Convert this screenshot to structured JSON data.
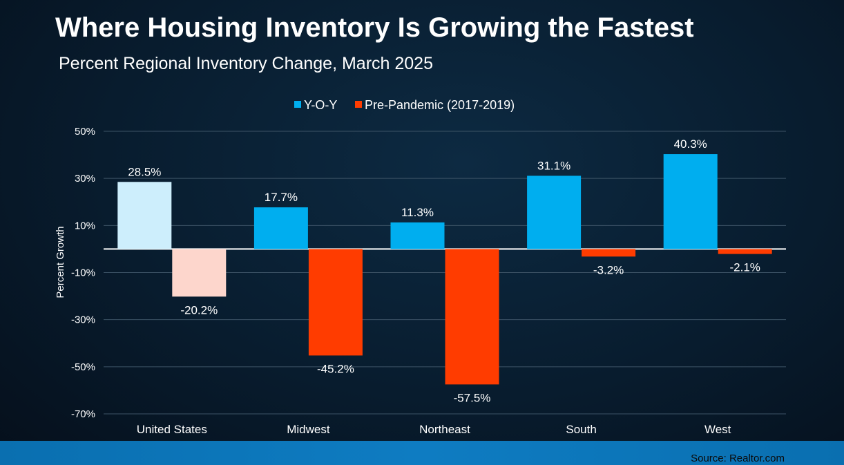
{
  "header": {
    "title": "Where Housing Inventory Is Growing the Fastest",
    "subtitle": "Percent Regional Inventory Change, March 2025"
  },
  "footer": {
    "source": "Source: Realtor.com"
  },
  "chart_data": {
    "type": "bar",
    "ylabel": "Percent Growth",
    "ylim": [
      -70,
      50
    ],
    "yticks": [
      50,
      30,
      10,
      -10,
      -30,
      -50,
      -70
    ],
    "ytick_labels": [
      "50%",
      "30%",
      "10%",
      "-10%",
      "-30%",
      "-50%",
      "-70%"
    ],
    "grid": true,
    "legend_position": "top-center",
    "categories": [
      "United States",
      "Midwest",
      "Northeast",
      "South",
      "West"
    ],
    "series": [
      {
        "name": "Y-O-Y",
        "color": "#00aeef",
        "values": [
          28.5,
          17.7,
          11.3,
          31.1,
          40.3
        ],
        "labels": [
          "28.5%",
          "17.7%",
          "11.3%",
          "31.1%",
          "40.3%"
        ]
      },
      {
        "name": "Pre-Pandemic (2017-2019)",
        "color": "#ff3c00",
        "values": [
          -20.2,
          -45.2,
          -57.5,
          -3.2,
          -2.1
        ],
        "labels": [
          "-20.2%",
          "-45.2%",
          "-57.5%",
          "-3.2%",
          "-2.1%"
        ]
      }
    ],
    "highlight": {
      "category": "United States",
      "colors": [
        "#cdeefc",
        "#fdd6cc"
      ]
    }
  }
}
